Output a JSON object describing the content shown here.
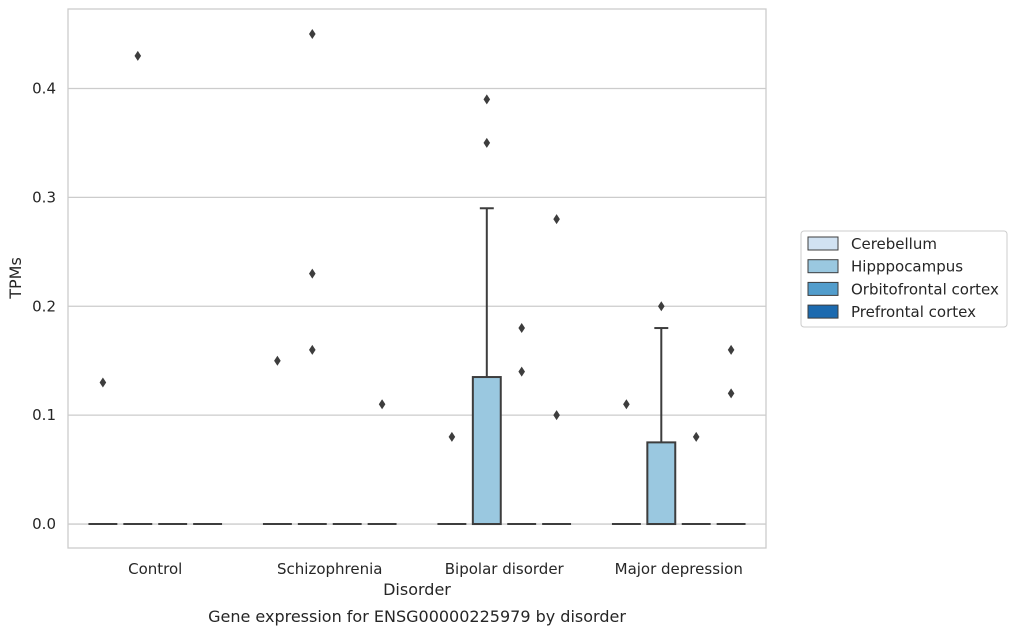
{
  "chart_data": {
    "type": "box",
    "title": "",
    "caption": "Gene expression for ENSG00000225979 by disorder",
    "xlabel": "Disorder",
    "ylabel": "TPMs",
    "categories": [
      "Control",
      "Schizophrenia",
      "Bipolar disorder",
      "Major depression"
    ],
    "yticks": [
      0.0,
      0.1,
      0.2,
      0.3,
      0.4
    ],
    "ytick_labels": [
      "0.0",
      "0.1",
      "0.2",
      "0.3",
      "0.4"
    ],
    "ylim": [
      -0.022,
      0.473
    ],
    "grid": "horizontal",
    "legend_position": "right",
    "series": [
      {
        "name": "Cerebellum",
        "color": "#d1e2f2",
        "boxes": [
          {
            "category": "Control",
            "q1": 0,
            "median": 0,
            "q3": 0,
            "whisker_low": 0,
            "whisker_high": 0,
            "outliers": [
              0.13
            ]
          },
          {
            "category": "Schizophrenia",
            "q1": 0,
            "median": 0,
            "q3": 0,
            "whisker_low": 0,
            "whisker_high": 0,
            "outliers": [
              0.15
            ]
          },
          {
            "category": "Bipolar disorder",
            "q1": 0,
            "median": 0,
            "q3": 0,
            "whisker_low": 0,
            "whisker_high": 0,
            "outliers": [
              0.08
            ]
          },
          {
            "category": "Major depression",
            "q1": 0,
            "median": 0,
            "q3": 0,
            "whisker_low": 0,
            "whisker_high": 0,
            "outliers": [
              0.11
            ]
          }
        ]
      },
      {
        "name": "Hipppocampus",
        "color": "#9ac8e0",
        "boxes": [
          {
            "category": "Control",
            "q1": 0,
            "median": 0,
            "q3": 0,
            "whisker_low": 0,
            "whisker_high": 0,
            "outliers": [
              0.43
            ]
          },
          {
            "category": "Schizophrenia",
            "q1": 0,
            "median": 0,
            "q3": 0,
            "whisker_low": 0,
            "whisker_high": 0,
            "outliers": [
              0.45,
              0.23,
              0.16
            ]
          },
          {
            "category": "Bipolar disorder",
            "q1": 0,
            "median": 0,
            "q3": 0.135,
            "whisker_low": 0,
            "whisker_high": 0.29,
            "outliers": [
              0.39,
              0.35
            ]
          },
          {
            "category": "Major depression",
            "q1": 0,
            "median": 0,
            "q3": 0.075,
            "whisker_low": 0,
            "whisker_high": 0.18,
            "outliers": [
              0.2
            ]
          }
        ]
      },
      {
        "name": "Orbitofrontal cortex",
        "color": "#529dcc",
        "boxes": [
          {
            "category": "Control",
            "q1": 0,
            "median": 0,
            "q3": 0,
            "whisker_low": 0,
            "whisker_high": 0,
            "outliers": []
          },
          {
            "category": "Schizophrenia",
            "q1": 0,
            "median": 0,
            "q3": 0,
            "whisker_low": 0,
            "whisker_high": 0,
            "outliers": []
          },
          {
            "category": "Bipolar disorder",
            "q1": 0,
            "median": 0,
            "q3": 0,
            "whisker_low": 0,
            "whisker_high": 0,
            "outliers": [
              0.18,
              0.14
            ]
          },
          {
            "category": "Major depression",
            "q1": 0,
            "median": 0,
            "q3": 0,
            "whisker_low": 0,
            "whisker_high": 0,
            "outliers": [
              0.08
            ]
          }
        ]
      },
      {
        "name": "Prefrontal cortex",
        "color": "#1c6aaf",
        "boxes": [
          {
            "category": "Control",
            "q1": 0,
            "median": 0,
            "q3": 0,
            "whisker_low": 0,
            "whisker_high": 0,
            "outliers": []
          },
          {
            "category": "Schizophrenia",
            "q1": 0,
            "median": 0,
            "q3": 0,
            "whisker_low": 0,
            "whisker_high": 0,
            "outliers": [
              0.11
            ]
          },
          {
            "category": "Bipolar disorder",
            "q1": 0,
            "median": 0,
            "q3": 0,
            "whisker_low": 0,
            "whisker_high": 0,
            "outliers": [
              0.28,
              0.1
            ]
          },
          {
            "category": "Major depression",
            "q1": 0,
            "median": 0,
            "q3": 0,
            "whisker_low": 0,
            "whisker_high": 0,
            "outliers": [
              0.16,
              0.12
            ]
          }
        ]
      }
    ]
  }
}
